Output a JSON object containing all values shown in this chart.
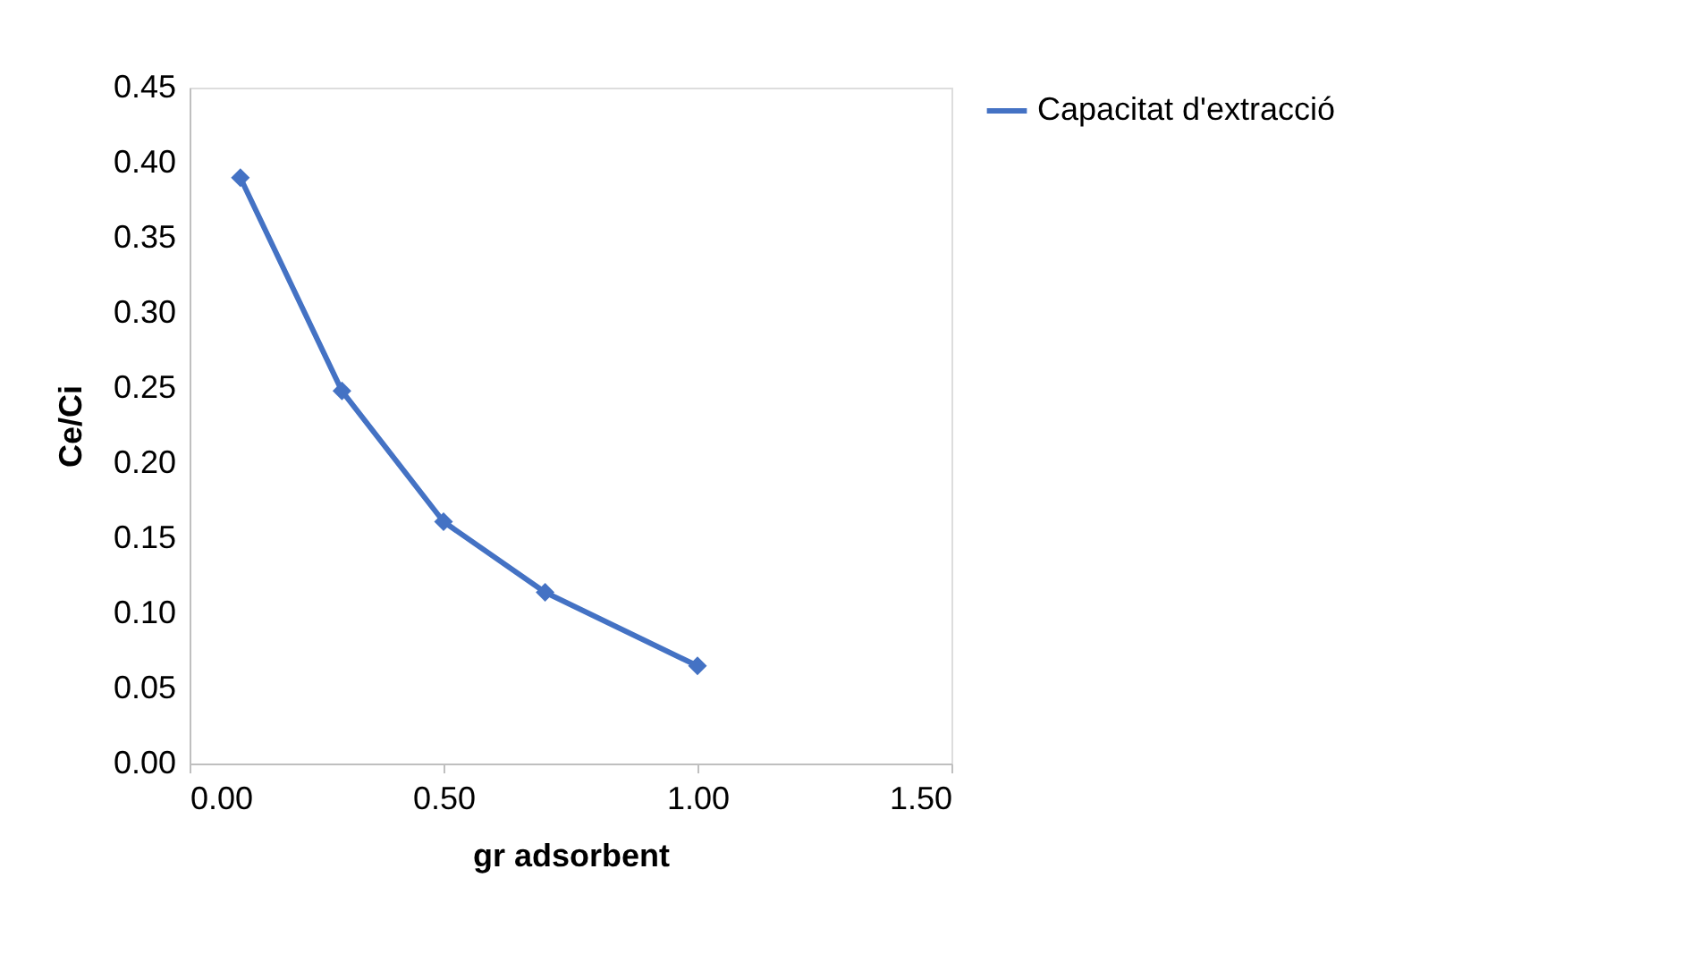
{
  "chart_data": {
    "type": "line",
    "xlabel": "gr adsorbent",
    "ylabel": "Ce/Ci",
    "x": [
      0.1,
      0.3,
      0.5,
      0.7,
      1.0
    ],
    "series": [
      {
        "name": "Capacitat d'extracció",
        "color": "#4472c4",
        "values": [
          0.39,
          0.248,
          0.161,
          0.114,
          0.065
        ]
      }
    ],
    "xlim": [
      0,
      1.5
    ],
    "xticks": [
      {
        "value": 0,
        "label": "0.00"
      },
      {
        "value": 0.5,
        "label": "0.50"
      },
      {
        "value": 1.0,
        "label": "1.00"
      },
      {
        "value": 1.5,
        "label": "1.50"
      }
    ],
    "ylim": [
      0,
      0.45
    ],
    "yticks": [
      {
        "value": 0,
        "label": "0.00"
      },
      {
        "value": 0.05,
        "label": "0.05"
      },
      {
        "value": 0.1,
        "label": "0.10"
      },
      {
        "value": 0.15,
        "label": "0.15"
      },
      {
        "value": 0.2,
        "label": "0.20"
      },
      {
        "value": 0.25,
        "label": "0.25"
      },
      {
        "value": 0.3,
        "label": "0.30"
      },
      {
        "value": 0.35,
        "label": "0.35"
      },
      {
        "value": 0.4,
        "label": "0.40"
      },
      {
        "value": 0.45,
        "label": "0.45"
      }
    ],
    "grid": false,
    "legend": "right",
    "marker": "diamond",
    "line_style": "solid"
  }
}
